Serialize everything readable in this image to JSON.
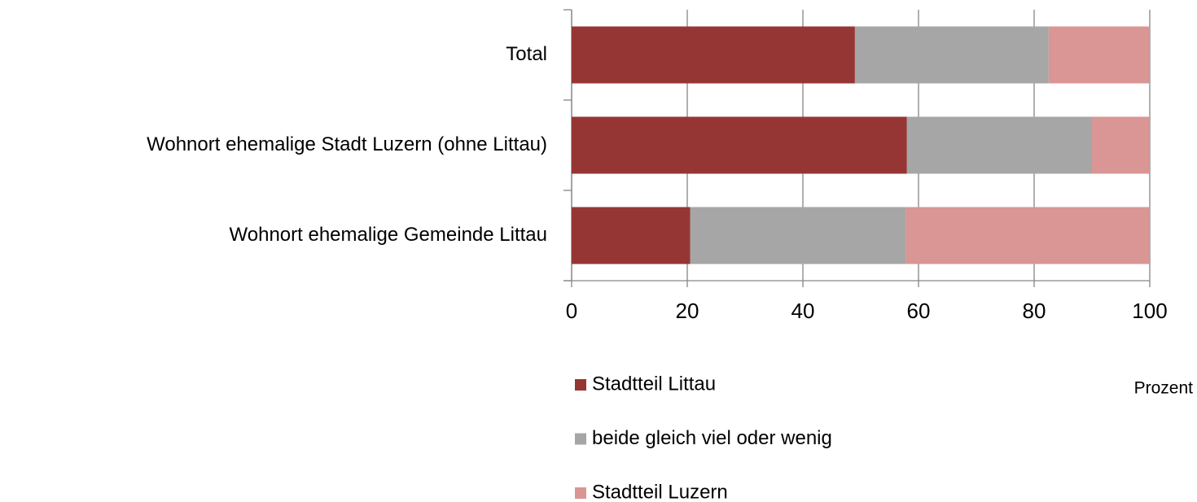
{
  "chart_data": {
    "type": "stacked_barh",
    "categories": [
      "Total",
      "Wohnort ehemalige Stadt Luzern (ohne Littau)",
      "Wohnort ehemalige Gemeinde Littau"
    ],
    "series": [
      {
        "name": "Stadtteil Littau",
        "color": "#963634",
        "values": [
          49,
          58,
          20.5
        ]
      },
      {
        "name": "beide gleich viel oder wenig",
        "color": "#a6a6a6",
        "values": [
          33.5,
          32,
          37.3
        ]
      },
      {
        "name": "Stadtteil Luzern",
        "color": "#d99694",
        "values": [
          17.5,
          10,
          42.2
        ]
      }
    ],
    "xlim": [
      0,
      100
    ],
    "xticks": [
      0,
      20,
      40,
      60,
      80,
      100
    ],
    "grid": true,
    "x_label": "Prozent"
  }
}
